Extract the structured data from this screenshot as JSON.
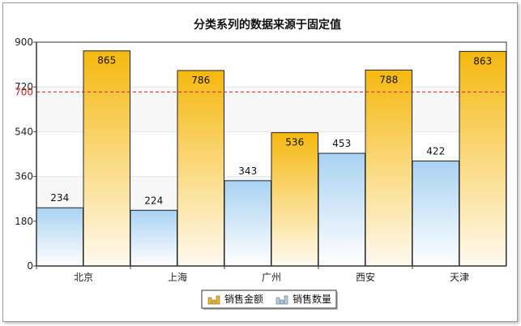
{
  "chart_data": {
    "type": "bar",
    "title": "分类系列的数据来源于固定值",
    "categories": [
      "北京",
      "上海",
      "广州",
      "西安",
      "天津"
    ],
    "series": [
      {
        "name": "销售数量",
        "values": [
          234,
          224,
          343,
          453,
          422
        ],
        "color_top": "#a9d2f2",
        "color_bottom": "#ffffff"
      },
      {
        "name": "销售金额",
        "values": [
          865,
          786,
          536,
          788,
          863
        ],
        "color_top": "#f5b80f",
        "color_bottom": "#fffaf0"
      }
    ],
    "ylim": [
      0,
      900
    ],
    "yticks": [
      0,
      180,
      360,
      540,
      720,
      900
    ],
    "reference_line": {
      "value": 700,
      "label": "700",
      "color": "#cc2222"
    },
    "grid": true,
    "legend": "bottom-center"
  }
}
